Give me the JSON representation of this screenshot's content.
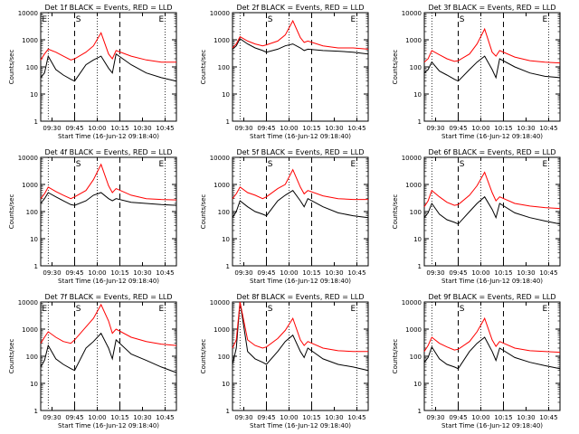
{
  "chart_data": [
    {
      "type": "line",
      "title": "Det 1f BLACK = Events, RED = LLD",
      "xlabel": "Start Time (16-Jun-12 09:18:40)",
      "ylabel": "Counts/sec",
      "x_ticks": [
        "09:30",
        "09:45",
        "10:00",
        "10:15",
        "10:30",
        "10:45"
      ],
      "y_ticks": [
        "1",
        "10",
        "100",
        "1000",
        "10000"
      ],
      "ylim": [
        1,
        10000
      ],
      "log_y": true,
      "vline_labels": [
        "E",
        "S",
        "E"
      ],
      "series": [
        {
          "name": "BLACK = Events",
          "color": "#000000",
          "x": [
            0,
            5,
            10,
            20,
            30,
            40,
            45,
            60,
            70,
            80,
            90,
            95,
            100,
            120,
            140,
            160,
            180
          ],
          "y": [
            40,
            60,
            250,
            80,
            50,
            35,
            30,
            120,
            180,
            250,
            90,
            60,
            300,
            120,
            60,
            40,
            30
          ]
        },
        {
          "name": "RED = LLD",
          "color": "#ff0000",
          "x": [
            0,
            5,
            10,
            20,
            30,
            40,
            45,
            60,
            70,
            80,
            90,
            95,
            100,
            120,
            140,
            160,
            180
          ],
          "y": [
            180,
            300,
            450,
            350,
            250,
            180,
            200,
            350,
            600,
            1800,
            300,
            200,
            400,
            250,
            180,
            150,
            150
          ]
        }
      ]
    },
    {
      "type": "line",
      "title": "Det 2f BLACK = Events, RED = LLD",
      "xlabel": "Start Time (16-Jun-12 09:18:40)",
      "ylabel": "Counts/sec",
      "x_ticks": [
        "09:30",
        "09:45",
        "10:00",
        "10:15",
        "10:30",
        "10:45"
      ],
      "y_ticks": [
        "1",
        "10",
        "100",
        "1000",
        "10000"
      ],
      "ylim": [
        1,
        10000
      ],
      "log_y": true,
      "vline_labels": [
        "S",
        "E"
      ],
      "series": [
        {
          "name": "BLACK = Events",
          "color": "#000000",
          "x": [
            0,
            5,
            10,
            20,
            30,
            40,
            45,
            60,
            70,
            80,
            90,
            95,
            100,
            120,
            140,
            160,
            180
          ],
          "y": [
            450,
            600,
            1100,
            700,
            500,
            400,
            350,
            450,
            600,
            700,
            500,
            400,
            450,
            400,
            380,
            350,
            300
          ]
        },
        {
          "name": "RED = LLD",
          "color": "#ff0000",
          "x": [
            0,
            5,
            10,
            20,
            30,
            40,
            45,
            60,
            70,
            80,
            90,
            95,
            100,
            120,
            140,
            160,
            180
          ],
          "y": [
            500,
            700,
            1300,
            900,
            700,
            600,
            650,
            900,
            1500,
            5000,
            1200,
            800,
            900,
            600,
            500,
            500,
            450
          ]
        }
      ]
    },
    {
      "type": "line",
      "title": "Det 3f BLACK = Events, RED = LLD",
      "xlabel": "Start Time (16-Jun-12 09:18:40)",
      "ylabel": "Counts/sec",
      "x_ticks": [
        "09:30",
        "09:45",
        "10:00",
        "10:15",
        "10:30",
        "10:45"
      ],
      "y_ticks": [
        "1",
        "10",
        "100",
        "1000",
        "10000"
      ],
      "ylim": [
        1,
        10000
      ],
      "log_y": true,
      "vline_labels": [
        "S",
        "E"
      ],
      "series": [
        {
          "name": "BLACK = Events",
          "color": "#000000",
          "x": [
            0,
            5,
            10,
            20,
            30,
            40,
            45,
            60,
            70,
            80,
            90,
            95,
            100,
            120,
            140,
            160,
            180
          ],
          "y": [
            60,
            80,
            150,
            70,
            50,
            35,
            30,
            80,
            150,
            250,
            80,
            40,
            200,
            100,
            60,
            45,
            40
          ]
        },
        {
          "name": "RED = LLD",
          "color": "#ff0000",
          "x": [
            0,
            5,
            10,
            20,
            30,
            40,
            45,
            60,
            70,
            80,
            90,
            95,
            100,
            120,
            140,
            160,
            180
          ],
          "y": [
            150,
            200,
            400,
            280,
            200,
            160,
            170,
            300,
            700,
            2500,
            350,
            250,
            400,
            230,
            170,
            150,
            140
          ]
        }
      ]
    },
    {
      "type": "line",
      "title": "Det 4f BLACK = Events, RED = LLD",
      "xlabel": "Start Time (16-Jun-12 09:18:40)",
      "ylabel": "Counts/sec",
      "x_ticks": [
        "09:30",
        "09:45",
        "10:00",
        "10:15",
        "10:30",
        "10:45"
      ],
      "y_ticks": [
        "1",
        "10",
        "100",
        "1000",
        "10000"
      ],
      "ylim": [
        1,
        10000
      ],
      "log_y": true,
      "vline_labels": [
        "S",
        "E"
      ],
      "series": [
        {
          "name": "BLACK = Events",
          "color": "#000000",
          "x": [
            0,
            5,
            10,
            20,
            30,
            40,
            45,
            60,
            70,
            80,
            90,
            95,
            100,
            120,
            140,
            160,
            180
          ],
          "y": [
            200,
            300,
            500,
            350,
            250,
            180,
            170,
            250,
            400,
            500,
            300,
            250,
            300,
            220,
            200,
            180,
            170
          ]
        },
        {
          "name": "RED = LLD",
          "color": "#ff0000",
          "x": [
            0,
            5,
            10,
            20,
            30,
            40,
            45,
            60,
            70,
            80,
            90,
            95,
            100,
            120,
            140,
            160,
            180
          ],
          "y": [
            300,
            450,
            800,
            550,
            400,
            300,
            350,
            600,
            1500,
            5500,
            900,
            500,
            700,
            400,
            300,
            280,
            270
          ]
        }
      ]
    },
    {
      "type": "line",
      "title": "Det 5f BLACK = Events, RED = LLD",
      "xlabel": "Start Time (16-Jun-12 09:18:40)",
      "ylabel": "Counts/sec",
      "x_ticks": [
        "09:30",
        "09:45",
        "10:00",
        "10:15",
        "10:30",
        "10:45"
      ],
      "y_ticks": [
        "1",
        "10",
        "100",
        "1000",
        "10000"
      ],
      "ylim": [
        1,
        10000
      ],
      "log_y": true,
      "vline_labels": [
        "S",
        "E"
      ],
      "series": [
        {
          "name": "BLACK = Events",
          "color": "#000000",
          "x": [
            0,
            5,
            10,
            20,
            30,
            40,
            45,
            60,
            70,
            80,
            90,
            95,
            100,
            120,
            140,
            160,
            180
          ],
          "y": [
            60,
            100,
            250,
            150,
            100,
            80,
            70,
            250,
            400,
            600,
            250,
            150,
            300,
            150,
            90,
            70,
            60
          ]
        },
        {
          "name": "RED = LLD",
          "color": "#ff0000",
          "x": [
            0,
            5,
            10,
            20,
            30,
            40,
            45,
            60,
            70,
            80,
            90,
            95,
            100,
            120,
            140,
            160,
            180
          ],
          "y": [
            300,
            450,
            800,
            500,
            400,
            300,
            350,
            700,
            1000,
            3500,
            800,
            450,
            600,
            380,
            300,
            280,
            280
          ]
        }
      ]
    },
    {
      "type": "line",
      "title": "Det 6f BLACK = Events, RED = LLD",
      "xlabel": "Start Time (16-Jun-12 09:18:40)",
      "ylabel": "Counts/sec",
      "x_ticks": [
        "09:30",
        "09:45",
        "10:00",
        "10:15",
        "10:30",
        "10:45"
      ],
      "y_ticks": [
        "1",
        "10",
        "100",
        "1000",
        "10000"
      ],
      "ylim": [
        1,
        10000
      ],
      "log_y": true,
      "vline_labels": [
        "S",
        "E"
      ],
      "series": [
        {
          "name": "BLACK = Events",
          "color": "#000000",
          "x": [
            0,
            5,
            10,
            20,
            30,
            40,
            45,
            60,
            70,
            80,
            90,
            95,
            100,
            120,
            140,
            160,
            180
          ],
          "y": [
            60,
            90,
            200,
            80,
            50,
            40,
            35,
            100,
            200,
            350,
            120,
            60,
            200,
            90,
            60,
            45,
            35
          ]
        },
        {
          "name": "RED = LLD",
          "color": "#ff0000",
          "x": [
            0,
            5,
            10,
            20,
            30,
            40,
            45,
            60,
            70,
            80,
            90,
            95,
            100,
            120,
            140,
            160,
            180
          ],
          "y": [
            150,
            250,
            600,
            350,
            220,
            170,
            180,
            400,
            900,
            2800,
            500,
            250,
            350,
            200,
            160,
            140,
            130
          ]
        }
      ]
    },
    {
      "type": "line",
      "title": "Det 7f BLACK = Events, RED = LLD",
      "xlabel": "Start Time (16-Jun-12 09:18:40)",
      "ylabel": "Counts/sec",
      "x_ticks": [
        "09:30",
        "09:45",
        "10:00",
        "10:15",
        "10:30",
        "10:45"
      ],
      "y_ticks": [
        "1",
        "10",
        "100",
        "1000",
        "10000"
      ],
      "ylim": [
        1,
        10000
      ],
      "log_y": true,
      "vline_labels": [
        "E",
        "S",
        "E"
      ],
      "series": [
        {
          "name": "BLACK = Events",
          "color": "#000000",
          "x": [
            0,
            5,
            10,
            20,
            30,
            40,
            45,
            60,
            70,
            80,
            90,
            95,
            100,
            120,
            140,
            160,
            180
          ],
          "y": [
            40,
            70,
            250,
            80,
            50,
            35,
            30,
            200,
            350,
            700,
            200,
            80,
            400,
            120,
            70,
            40,
            25
          ]
        },
        {
          "name": "RED = LLD",
          "color": "#ff0000",
          "x": [
            0,
            5,
            10,
            20,
            30,
            40,
            45,
            60,
            70,
            80,
            90,
            95,
            100,
            120,
            140,
            160,
            180
          ],
          "y": [
            300,
            500,
            800,
            500,
            350,
            300,
            400,
            1200,
            2500,
            8000,
            2000,
            700,
            1000,
            500,
            350,
            280,
            250
          ]
        }
      ]
    },
    {
      "type": "line",
      "title": "Det 8f BLACK = Events, RED = LLD",
      "xlabel": "Start Time (16-Jun-12 09:18:40)",
      "ylabel": "Counts/sec",
      "x_ticks": [
        "09:30",
        "09:45",
        "10:00",
        "10:15",
        "10:30",
        "10:45"
      ],
      "y_ticks": [
        "1",
        "10",
        "100",
        "1000",
        "10000"
      ],
      "ylim": [
        1,
        10000
      ],
      "log_y": true,
      "vline_labels": [
        "S",
        "E"
      ],
      "series": [
        {
          "name": "BLACK = Events",
          "color": "#000000",
          "x": [
            0,
            5,
            10,
            20,
            30,
            40,
            45,
            60,
            70,
            80,
            90,
            95,
            100,
            120,
            140,
            160,
            180
          ],
          "y": [
            50,
            200,
            10000,
            150,
            80,
            60,
            50,
            150,
            350,
            600,
            150,
            90,
            200,
            80,
            50,
            40,
            30
          ]
        },
        {
          "name": "RED = LLD",
          "color": "#ff0000",
          "x": [
            0,
            5,
            10,
            20,
            30,
            40,
            45,
            60,
            70,
            80,
            90,
            95,
            100,
            120,
            140,
            160,
            180
          ],
          "y": [
            200,
            400,
            10000,
            400,
            250,
            200,
            220,
            450,
            900,
            2500,
            400,
            250,
            350,
            200,
            160,
            150,
            150
          ]
        }
      ]
    },
    {
      "type": "line",
      "title": "Det 9f BLACK = Events, RED = LLD",
      "xlabel": "Start Time (16-Jun-12 09:18:40)",
      "ylabel": "Counts/sec",
      "x_ticks": [
        "09:30",
        "09:45",
        "10:00",
        "10:15",
        "10:30",
        "10:45"
      ],
      "y_ticks": [
        "1",
        "10",
        "100",
        "1000",
        "10000"
      ],
      "ylim": [
        1,
        10000
      ],
      "log_y": true,
      "vline_labels": [
        "S",
        "E"
      ],
      "series": [
        {
          "name": "BLACK = Events",
          "color": "#000000",
          "x": [
            0,
            5,
            10,
            20,
            30,
            40,
            45,
            60,
            70,
            80,
            90,
            95,
            100,
            120,
            140,
            160,
            180
          ],
          "y": [
            60,
            90,
            220,
            80,
            50,
            40,
            35,
            150,
            300,
            500,
            150,
            70,
            200,
            90,
            60,
            45,
            35
          ]
        },
        {
          "name": "RED = LLD",
          "color": "#ff0000",
          "x": [
            0,
            5,
            10,
            20,
            30,
            40,
            45,
            60,
            70,
            80,
            90,
            95,
            100,
            120,
            140,
            160,
            180
          ],
          "y": [
            150,
            250,
            500,
            300,
            220,
            170,
            180,
            350,
            800,
            2500,
            400,
            230,
            350,
            200,
            160,
            150,
            140
          ]
        }
      ]
    }
  ]
}
